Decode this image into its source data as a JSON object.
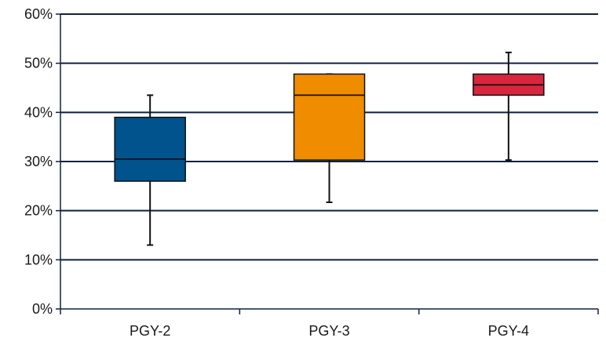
{
  "chart_data": {
    "type": "box",
    "title": "",
    "xlabel": "",
    "ylabel": "",
    "ylim": [
      0,
      60
    ],
    "y_tick_format": "percent",
    "y_ticks": [
      "0%",
      "10%",
      "20%",
      "30%",
      "40%",
      "50%",
      "60%"
    ],
    "y_tick_values": [
      0,
      10,
      20,
      30,
      40,
      50,
      60
    ],
    "grid": true,
    "legend": "none",
    "categories": [
      "PGY-2",
      "PGY-3",
      "PGY-4"
    ],
    "boxes": [
      {
        "category": "PGY-2",
        "min": 13,
        "q1": 26,
        "median": 30.5,
        "q3": 39,
        "max": 43.5,
        "color": "#00538c"
      },
      {
        "category": "PGY-3",
        "min": 21.7,
        "q1": 30.3,
        "median": 43.5,
        "q3": 47.8,
        "max": 47.8,
        "color": "#f08c00"
      },
      {
        "category": "PGY-4",
        "min": 30.3,
        "q1": 43.5,
        "median": 45.6,
        "q3": 47.8,
        "max": 52.2,
        "color": "#d7263d"
      }
    ]
  }
}
